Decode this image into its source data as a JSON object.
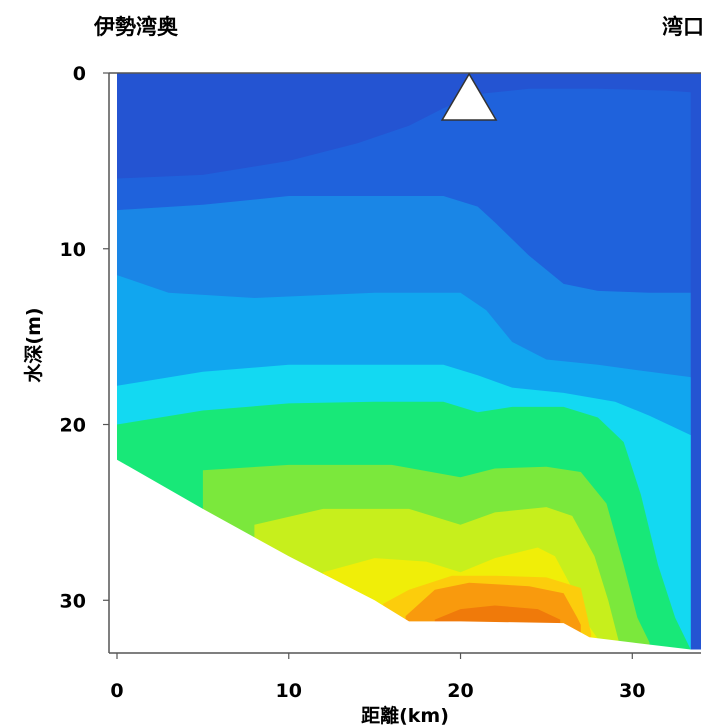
{
  "chart_data": {
    "type": "heatmap",
    "title": "",
    "top_left_label": "伊勢湾奥",
    "top_right_label": "湾口",
    "xlabel": "距離(km)",
    "ylabel": "水深(m)",
    "xlim": [
      0,
      34
    ],
    "ylim": [
      0,
      33
    ],
    "y_inverted": true,
    "xticks": [
      "0",
      "10",
      "20",
      "30"
    ],
    "yticks": [
      "0",
      "10",
      "20",
      "30"
    ],
    "grid": false,
    "colorscale_note": "blue (surface) to cyan, green, yellow, orange (bottom)",
    "seabed_outline": [
      [
        0,
        22.0
      ],
      [
        5,
        24.8
      ],
      [
        10,
        27.5
      ],
      [
        15,
        30.0
      ],
      [
        17,
        31.2
      ],
      [
        20,
        31.2
      ],
      [
        26,
        31.3
      ],
      [
        27.5,
        32.1
      ],
      [
        30,
        32.4
      ],
      [
        33.4,
        32.8
      ]
    ],
    "station_marker": {
      "x": 20.5,
      "depth": 0,
      "shape": "triangle"
    },
    "contours": [
      {
        "level": 1,
        "color": "#1f62dc",
        "boundary": [
          [
            0,
            6.0
          ],
          [
            5,
            5.8
          ],
          [
            10,
            5.0
          ],
          [
            14,
            4.0
          ],
          [
            17,
            3.0
          ],
          [
            19,
            2.0
          ],
          [
            21,
            1.2
          ],
          [
            24,
            0.9
          ],
          [
            28,
            0.9
          ],
          [
            32,
            1.0
          ],
          [
            33.4,
            1.1
          ]
        ]
      },
      {
        "level": 2,
        "color": "#1a86e6",
        "boundary": [
          [
            0,
            7.8
          ],
          [
            5,
            7.5
          ],
          [
            10,
            7.0
          ],
          [
            15,
            7.0
          ],
          [
            19,
            7.0
          ],
          [
            21,
            7.6
          ],
          [
            22,
            8.5
          ],
          [
            24,
            10.4
          ],
          [
            26,
            12.0
          ],
          [
            28,
            12.4
          ],
          [
            31,
            12.5
          ],
          [
            33.4,
            12.5
          ]
        ]
      },
      {
        "level": 3,
        "color": "#11a6ef",
        "boundary": [
          [
            0,
            11.5
          ],
          [
            3,
            12.5
          ],
          [
            8,
            12.8
          ],
          [
            15,
            12.5
          ],
          [
            20,
            12.5
          ],
          [
            21.5,
            13.5
          ],
          [
            23,
            15.3
          ],
          [
            25,
            16.3
          ],
          [
            28,
            16.6
          ],
          [
            31,
            17.0
          ],
          [
            33.4,
            17.3
          ]
        ]
      },
      {
        "level": 4,
        "color": "#13d9f2",
        "boundary": [
          [
            0,
            17.8
          ],
          [
            5,
            17.0
          ],
          [
            10,
            16.6
          ],
          [
            15,
            16.6
          ],
          [
            19,
            16.6
          ],
          [
            21,
            17.2
          ],
          [
            23,
            17.9
          ],
          [
            26,
            18.2
          ],
          [
            29,
            18.7
          ],
          [
            31,
            19.5
          ],
          [
            33.4,
            20.6
          ]
        ]
      },
      {
        "level": 5,
        "color": "#18e878",
        "boundary": [
          [
            0,
            20.0
          ],
          [
            5,
            19.2
          ],
          [
            10,
            18.8
          ],
          [
            15,
            18.7
          ],
          [
            19,
            18.7
          ],
          [
            21,
            19.3
          ],
          [
            23,
            19.0
          ],
          [
            26,
            19.0
          ],
          [
            28,
            19.6
          ],
          [
            29.5,
            21.0
          ],
          [
            30.5,
            24.0
          ],
          [
            31.5,
            28.0
          ],
          [
            32.5,
            31.0
          ],
          [
            33.4,
            32.8
          ]
        ]
      },
      {
        "level": 6,
        "color": "#7be83c",
        "boundary": [
          [
            5,
            22.6
          ],
          [
            10,
            22.3
          ],
          [
            16,
            22.3
          ],
          [
            20,
            23.0
          ],
          [
            22,
            22.5
          ],
          [
            25,
            22.4
          ],
          [
            27,
            22.7
          ],
          [
            28.5,
            24.5
          ],
          [
            29.5,
            28.0
          ],
          [
            30.3,
            31.0
          ],
          [
            31,
            32.4
          ]
        ]
      },
      {
        "level": 7,
        "color": "#c7ef1c",
        "boundary": [
          [
            8,
            25.7
          ],
          [
            12,
            24.8
          ],
          [
            17,
            24.8
          ],
          [
            20,
            25.7
          ],
          [
            22,
            25.0
          ],
          [
            25,
            24.7
          ],
          [
            26.5,
            25.2
          ],
          [
            27.8,
            27.5
          ],
          [
            28.6,
            30.0
          ],
          [
            29.2,
            32.3
          ]
        ]
      },
      {
        "level": 8,
        "color": "#f0ee08",
        "boundary": [
          [
            12,
            28.4
          ],
          [
            15,
            27.6
          ],
          [
            18,
            27.8
          ],
          [
            20,
            28.4
          ],
          [
            22,
            27.6
          ],
          [
            24.5,
            27.0
          ],
          [
            25.5,
            27.5
          ],
          [
            26.6,
            29.5
          ],
          [
            27.5,
            31.5
          ],
          [
            28,
            32.2
          ]
        ]
      },
      {
        "level": 9,
        "color": "#fccd0c",
        "boundary": [
          [
            15.5,
            30.2
          ],
          [
            17,
            29.4
          ],
          [
            19.5,
            28.6
          ],
          [
            22,
            28.6
          ],
          [
            25,
            28.7
          ],
          [
            27,
            29.3
          ],
          [
            27.4,
            31.0
          ],
          [
            27.6,
            31.9
          ]
        ]
      },
      {
        "level": 10,
        "color": "#f99a0d",
        "boundary": [
          [
            16.8,
            30.9
          ],
          [
            18.5,
            29.4
          ],
          [
            20.5,
            29.0
          ],
          [
            24,
            29.2
          ],
          [
            26,
            29.6
          ],
          [
            26.8,
            31.0
          ],
          [
            27,
            31.4
          ]
        ]
      },
      {
        "level": 11,
        "color": "#f07a0a",
        "boundary": [
          [
            18.5,
            31.1
          ],
          [
            20,
            30.5
          ],
          [
            22,
            30.3
          ],
          [
            24.5,
            30.5
          ],
          [
            25.8,
            31.1
          ]
        ]
      }
    ],
    "base_color": "#2454d2",
    "marker_color": "#ffffff"
  }
}
